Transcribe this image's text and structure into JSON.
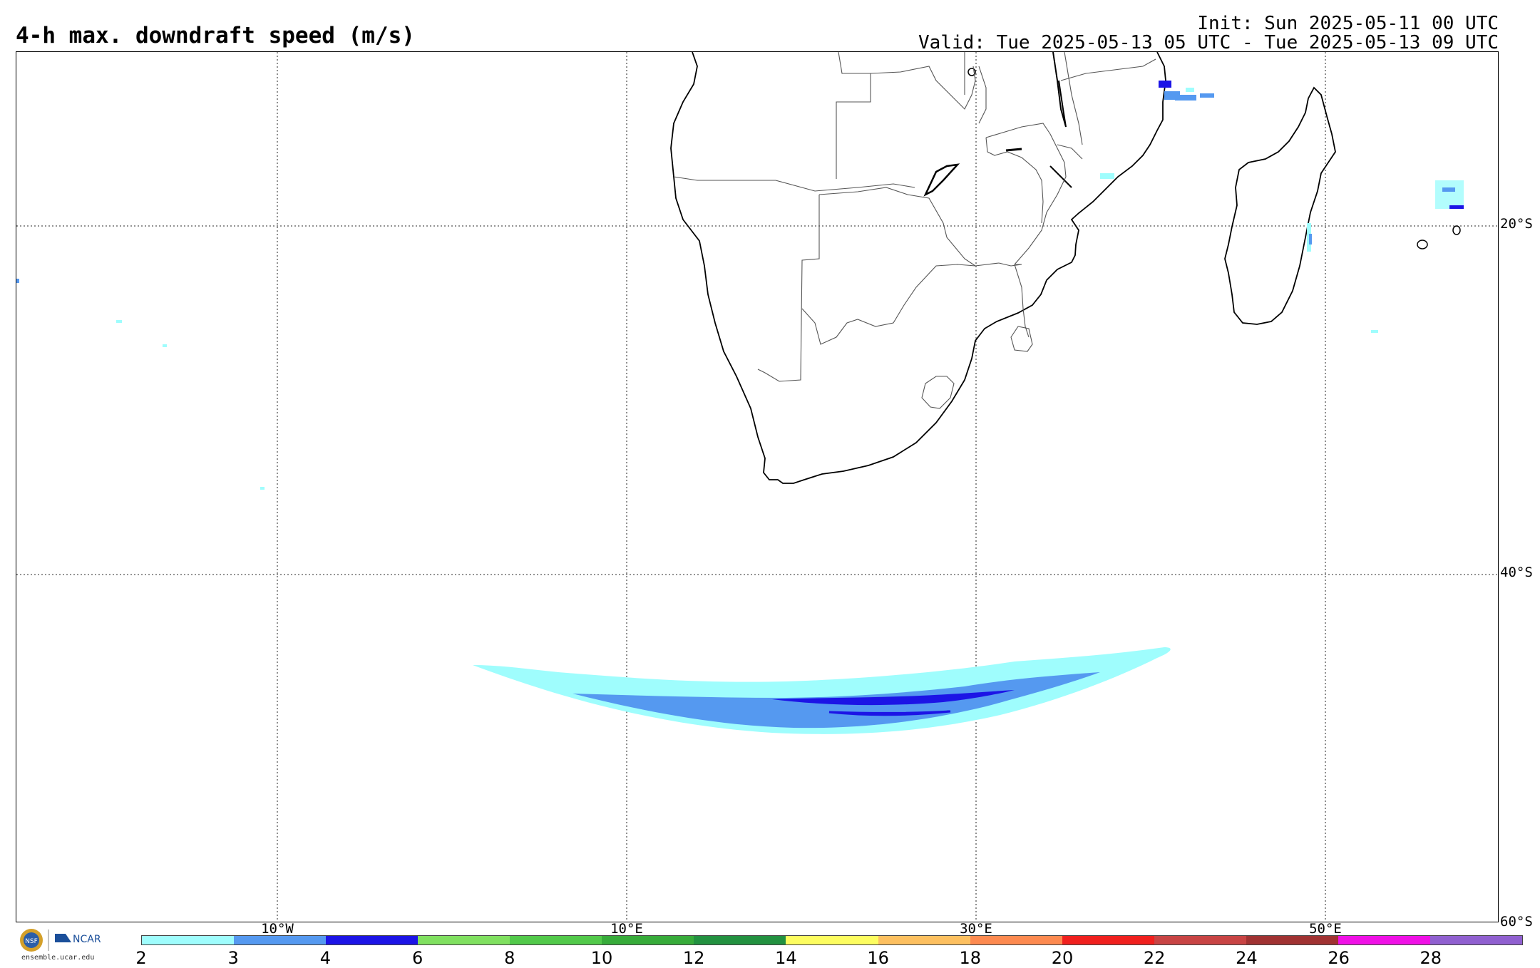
{
  "header": {
    "title": "4-h max. downdraft speed (m/s)",
    "init": "Init: Sun 2025-05-11 00 UTC",
    "valid": "Valid: Tue 2025-05-13 05 UTC - Tue 2025-05-13 09 UTC"
  },
  "map": {
    "lat_labels": [
      "20°S",
      "40°S",
      "60°S"
    ],
    "lon_labels": [
      "10°W",
      "10°E",
      "30°E",
      "50°E"
    ]
  },
  "colorbar": {
    "ticks": [
      "2",
      "3",
      "4",
      "6",
      "8",
      "10",
      "12",
      "14",
      "16",
      "18",
      "20",
      "22",
      "24",
      "26",
      "28"
    ],
    "colors": [
      "#9ffdfd",
      "#5599f0",
      "#1c14e6",
      "#80e060",
      "#52c94a",
      "#37ab3a",
      "#229140",
      "#fdfd60",
      "#fdc060",
      "#fd8a50",
      "#f0201e",
      "#c84444",
      "#a03232",
      "#f010e6",
      "#9060d0"
    ]
  },
  "footer": {
    "url": "ensemble.ucar.edu",
    "ncar": "NCAR",
    "nsf": "NSF"
  }
}
